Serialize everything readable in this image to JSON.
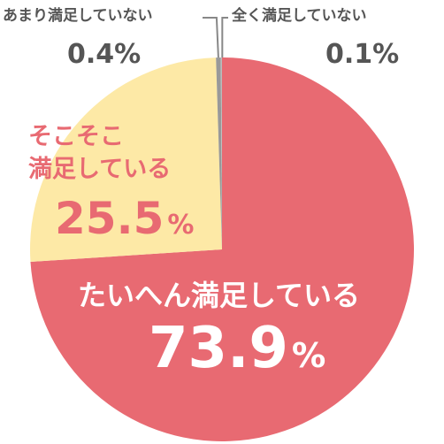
{
  "chart_data": {
    "type": "pie",
    "slices": [
      {
        "label": "たいへん満足している",
        "value": 73.9,
        "value_text": "73.9",
        "unit": "%",
        "color": "#e86a72"
      },
      {
        "label_lines": [
          "そこそこ",
          "満足している"
        ],
        "value": 25.5,
        "value_text": "25.5",
        "unit": "%",
        "color": "#fde9a6"
      },
      {
        "label": "あまり満足していない",
        "value": 0.4,
        "value_text": "0.4%",
        "color": "#999999"
      },
      {
        "label": "全く満足していない",
        "value": 0.1,
        "value_text": "0.1%",
        "color": "#bbbbbb"
      }
    ],
    "start": "12 o'clock",
    "direction": "clockwise",
    "leader_line_color": "#888888"
  }
}
